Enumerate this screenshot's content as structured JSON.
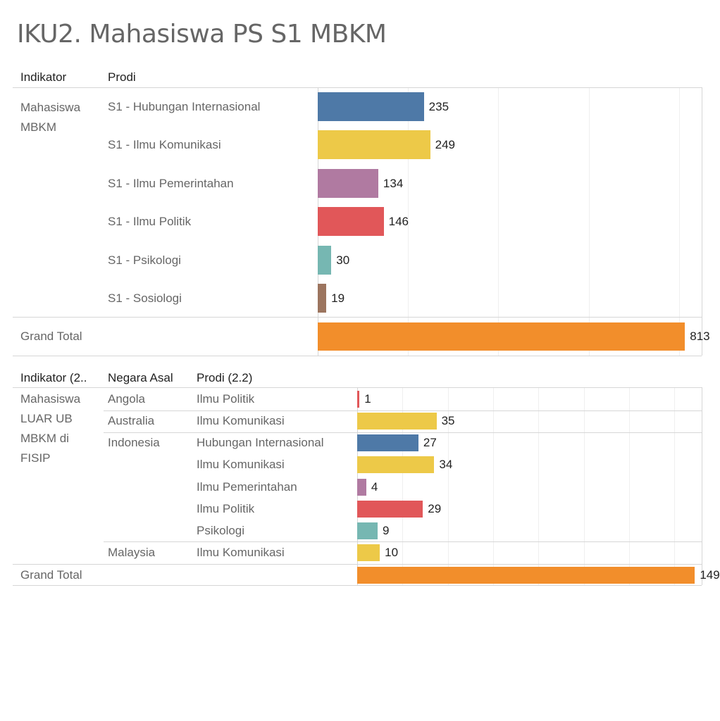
{
  "title": "IKU2. Mahasiswa PS S1 MBKM",
  "table1": {
    "headers": {
      "indikator": "Indikator",
      "prodi": "Prodi"
    },
    "indicator_lines": [
      "Mahasiswa",
      "MBKM"
    ],
    "grand_total_label": "Grand Total"
  },
  "table2": {
    "headers": {
      "indikator": "Indikator (2..",
      "negara": "Negara Asal",
      "prodi": "Prodi (2.2)"
    },
    "indicator_lines": [
      "Mahasiswa",
      "LUAR UB",
      "MBKM di",
      "FISIP"
    ],
    "grand_total_label": "Grand Total"
  },
  "colors": {
    "Hubungan Internasional": "#4e79a7",
    "Ilmu Komunikasi": "#edc948",
    "Ilmu Pemerintahan": "#b07aa1",
    "Ilmu Politik": "#e15759",
    "Psikologi": "#76b7b2",
    "Sosiologi": "#9c755f",
    "Grand Total": "#f28e2b"
  },
  "chart_data": [
    {
      "type": "bar",
      "orientation": "horizontal",
      "title": "IKU2. Mahasiswa PS S1 MBKM",
      "indicator": "Mahasiswa MBKM",
      "categories": [
        "S1 - Hubungan Internasional",
        "S1 - Ilmu Komunikasi",
        "S1 - Ilmu Pemerintahan",
        "S1 - Ilmu Politik",
        "S1 - Psikologi",
        "S1 - Sosiologi"
      ],
      "values": [
        235,
        249,
        134,
        146,
        30,
        19
      ],
      "grand_total": 813,
      "xlim": [
        0,
        850
      ],
      "grid": true
    },
    {
      "type": "bar",
      "orientation": "horizontal",
      "indicator": "Mahasiswa LUAR UB MBKM di FISIP",
      "rows": [
        {
          "negara": "Angola",
          "prodi": "Ilmu Politik",
          "value": 1
        },
        {
          "negara": "Australia",
          "prodi": "Ilmu Komunikasi",
          "value": 35
        },
        {
          "negara": "Indonesia",
          "prodi": "Hubungan Internasional",
          "value": 27
        },
        {
          "negara": "",
          "prodi": "Ilmu Komunikasi",
          "value": 34
        },
        {
          "negara": "",
          "prodi": "Ilmu Pemerintahan",
          "value": 4
        },
        {
          "negara": "",
          "prodi": "Ilmu Politik",
          "value": 29
        },
        {
          "negara": "",
          "prodi": "Psikologi",
          "value": 9
        },
        {
          "negara": "Malaysia",
          "prodi": "Ilmu Komunikasi",
          "value": 10
        }
      ],
      "grand_total": 149,
      "xlim": [
        0,
        152
      ],
      "grid": true
    }
  ]
}
